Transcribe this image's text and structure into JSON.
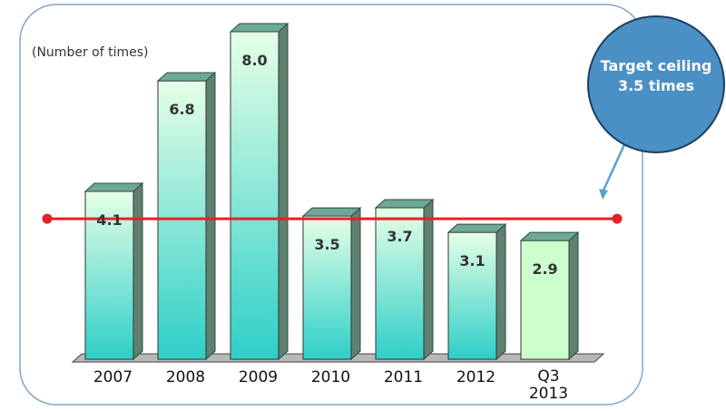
{
  "chart_data": {
    "type": "bar",
    "ylabel": "(Number of times)",
    "categories": [
      [
        "2007"
      ],
      [
        "2008"
      ],
      [
        "2009"
      ],
      [
        "2010"
      ],
      [
        "2011"
      ],
      [
        "2012"
      ],
      [
        "Q3",
        "2013"
      ]
    ],
    "values": [
      4.1,
      6.8,
      8.0,
      3.5,
      3.7,
      3.1,
      2.9
    ],
    "data_labels": [
      "4.1",
      "6.8",
      "8.0",
      "3.5",
      "3.7",
      "3.1",
      "2.9"
    ],
    "ylim": [
      0,
      8.0
    ],
    "grid": false,
    "reference_line": {
      "value": 3.5
    },
    "callout": {
      "lines": [
        "Target ceiling",
        "3.5 times"
      ]
    },
    "colors": {
      "bar_top": "#e6ffe6",
      "bar_bottom": "#2ecfc8",
      "bar_plain": "#ccffcc",
      "bar_side": "#5f8270",
      "bar_cap": "#6fa898",
      "reference_line": "#e8202a",
      "callout_fill": "#4a90c4",
      "callout_arrow": "#5aa0cc",
      "frame": "#7ea6c8"
    }
  }
}
